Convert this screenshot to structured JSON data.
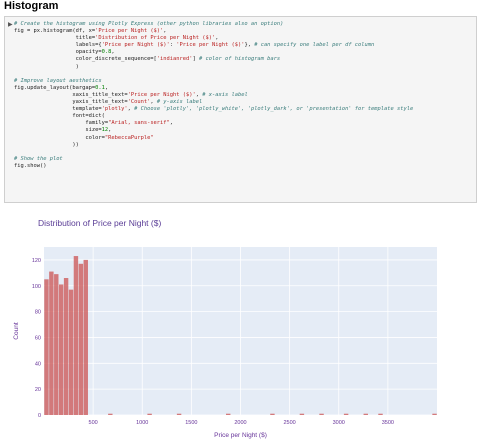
{
  "page": {
    "heading": "Histogram"
  },
  "cell": {
    "run_icon": "▶",
    "code_lines": [
      "# Create the histogram using Plotly Express (other python libraries also an option)",
      "fig = px.histogram(df, x='Price per Night ($)',",
      "                   title='Distribution of Price per Night ($)',",
      "                   labels={'Price per Night ($)': 'Price per Night ($)'}, # can specify one label per df column",
      "                   opacity=0.8,",
      "                   color_discrete_sequence=['indianred'] # color of histogram bars",
      "                   )",
      "",
      "# Improve layout aesthetics",
      "fig.update_layout(bargap=0.1,",
      "                  xaxis_title_text='Price per Night ($)', # x-axis label",
      "                  yaxis_title_text='Count', # y-axis label",
      "                  template='plotly', # Choose 'plotly', 'plotly_white', 'plotly_dark', or 'presentation' for template style",
      "                  font=dict(",
      "                      family=\"Arial, sans-serif\",",
      "                      size=12,",
      "                      color=\"RebeccaPurple\"",
      "                  ))",
      "",
      "# Show the plot",
      "fig.show()"
    ]
  },
  "chart_data": {
    "type": "bar",
    "title": "Distribution of Price per Night ($)",
    "xlabel": "Price per Night ($)",
    "ylabel": "Count",
    "xlim": [
      0,
      4000
    ],
    "ylim": [
      0,
      130
    ],
    "xticks": [
      500,
      1000,
      1500,
      2000,
      2500,
      3000,
      3500
    ],
    "yticks": [
      0,
      20,
      40,
      60,
      80,
      100,
      120
    ],
    "bin_width": 50,
    "bins": [
      {
        "x0": 0,
        "value": 105
      },
      {
        "x0": 50,
        "value": 111
      },
      {
        "x0": 100,
        "value": 109
      },
      {
        "x0": 150,
        "value": 101
      },
      {
        "x0": 200,
        "value": 106
      },
      {
        "x0": 250,
        "value": 97
      },
      {
        "x0": 300,
        "value": 123
      },
      {
        "x0": 350,
        "value": 117
      },
      {
        "x0": 400,
        "value": 120
      },
      {
        "x0": 650,
        "value": 1
      },
      {
        "x0": 1050,
        "value": 1
      },
      {
        "x0": 1350,
        "value": 1
      },
      {
        "x0": 1850,
        "value": 1
      },
      {
        "x0": 2300,
        "value": 1
      },
      {
        "x0": 2600,
        "value": 1
      },
      {
        "x0": 2800,
        "value": 1
      },
      {
        "x0": 3050,
        "value": 1
      },
      {
        "x0": 3250,
        "value": 1
      },
      {
        "x0": 3400,
        "value": 1
      },
      {
        "x0": 3950,
        "value": 1
      }
    ],
    "colors": {
      "bar": "#cd5c5c",
      "plot_bg": "#e5ecf6",
      "grid": "#ffffff",
      "font": "#663399"
    },
    "grid": true,
    "opacity": 0.8
  }
}
